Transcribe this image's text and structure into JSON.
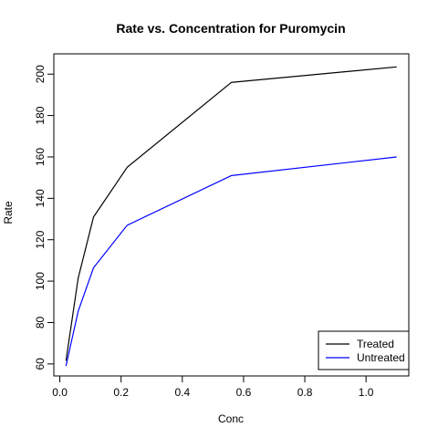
{
  "chart_data": {
    "type": "line",
    "title": "Rate vs. Concentration for Puromycin",
    "xlabel": "Conc",
    "ylabel": "Rate",
    "xlim": [
      -0.0196,
      1.1396
    ],
    "ylim": [
      54.2,
      209.8
    ],
    "xticks": [
      0.0,
      0.2,
      0.4,
      0.6,
      0.8,
      1.0
    ],
    "xtick_labels": [
      "0.0",
      "0.2",
      "0.4",
      "0.6",
      "0.8",
      "1.0"
    ],
    "yticks": [
      60,
      80,
      100,
      120,
      140,
      160,
      180,
      200
    ],
    "ytick_labels": [
      "60",
      "80",
      "100",
      "120",
      "140",
      "160",
      "180",
      "200"
    ],
    "grid": false,
    "legend_position": "bottom-right",
    "series": [
      {
        "name": "Treated",
        "color": "#000000",
        "x": [
          0.02,
          0.06,
          0.11,
          0.22,
          0.56,
          1.1
        ],
        "y": [
          61.5,
          101.5,
          131.0,
          155.0,
          196.0,
          203.5
        ]
      },
      {
        "name": "Untreated",
        "color": "#0000ff",
        "x": [
          0.02,
          0.06,
          0.11,
          0.22,
          0.56,
          1.1
        ],
        "y": [
          59.0,
          85.5,
          106.5,
          127.0,
          151.0,
          160.0
        ]
      }
    ]
  }
}
